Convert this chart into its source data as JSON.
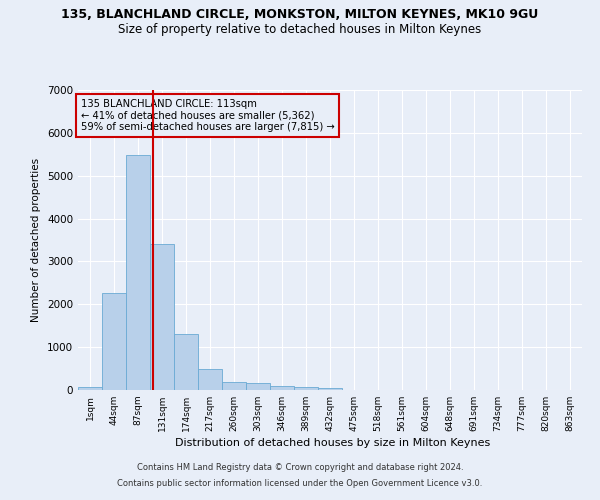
{
  "title": "135, BLANCHLAND CIRCLE, MONKSTON, MILTON KEYNES, MK10 9GU",
  "subtitle": "Size of property relative to detached houses in Milton Keynes",
  "xlabel": "Distribution of detached houses by size in Milton Keynes",
  "ylabel": "Number of detached properties",
  "footer_line1": "Contains HM Land Registry data © Crown copyright and database right 2024.",
  "footer_line2": "Contains public sector information licensed under the Open Government Licence v3.0.",
  "annotation_line1": "135 BLANCHLAND CIRCLE: 113sqm",
  "annotation_line2": "← 41% of detached houses are smaller (5,362)",
  "annotation_line3": "59% of semi-detached houses are larger (7,815) →",
  "bar_labels": [
    "1sqm",
    "44sqm",
    "87sqm",
    "131sqm",
    "174sqm",
    "217sqm",
    "260sqm",
    "303sqm",
    "346sqm",
    "389sqm",
    "432sqm",
    "475sqm",
    "518sqm",
    "561sqm",
    "604sqm",
    "648sqm",
    "691sqm",
    "734sqm",
    "777sqm",
    "820sqm",
    "863sqm"
  ],
  "bar_values": [
    70,
    2270,
    5480,
    3400,
    1300,
    490,
    185,
    165,
    95,
    65,
    40,
    0,
    0,
    0,
    0,
    0,
    0,
    0,
    0,
    0,
    0
  ],
  "bar_color": "#b8d0ea",
  "bar_edge_color": "#6aaad4",
  "vline_x": 2.62,
  "vline_color": "#cc0000",
  "ylim": [
    0,
    7000
  ],
  "yticks": [
    0,
    1000,
    2000,
    3000,
    4000,
    5000,
    6000,
    7000
  ],
  "bg_color": "#e8eef8",
  "grid_color": "#ffffff",
  "annotation_box_color": "#cc0000",
  "title_fontsize": 9,
  "subtitle_fontsize": 8.5
}
